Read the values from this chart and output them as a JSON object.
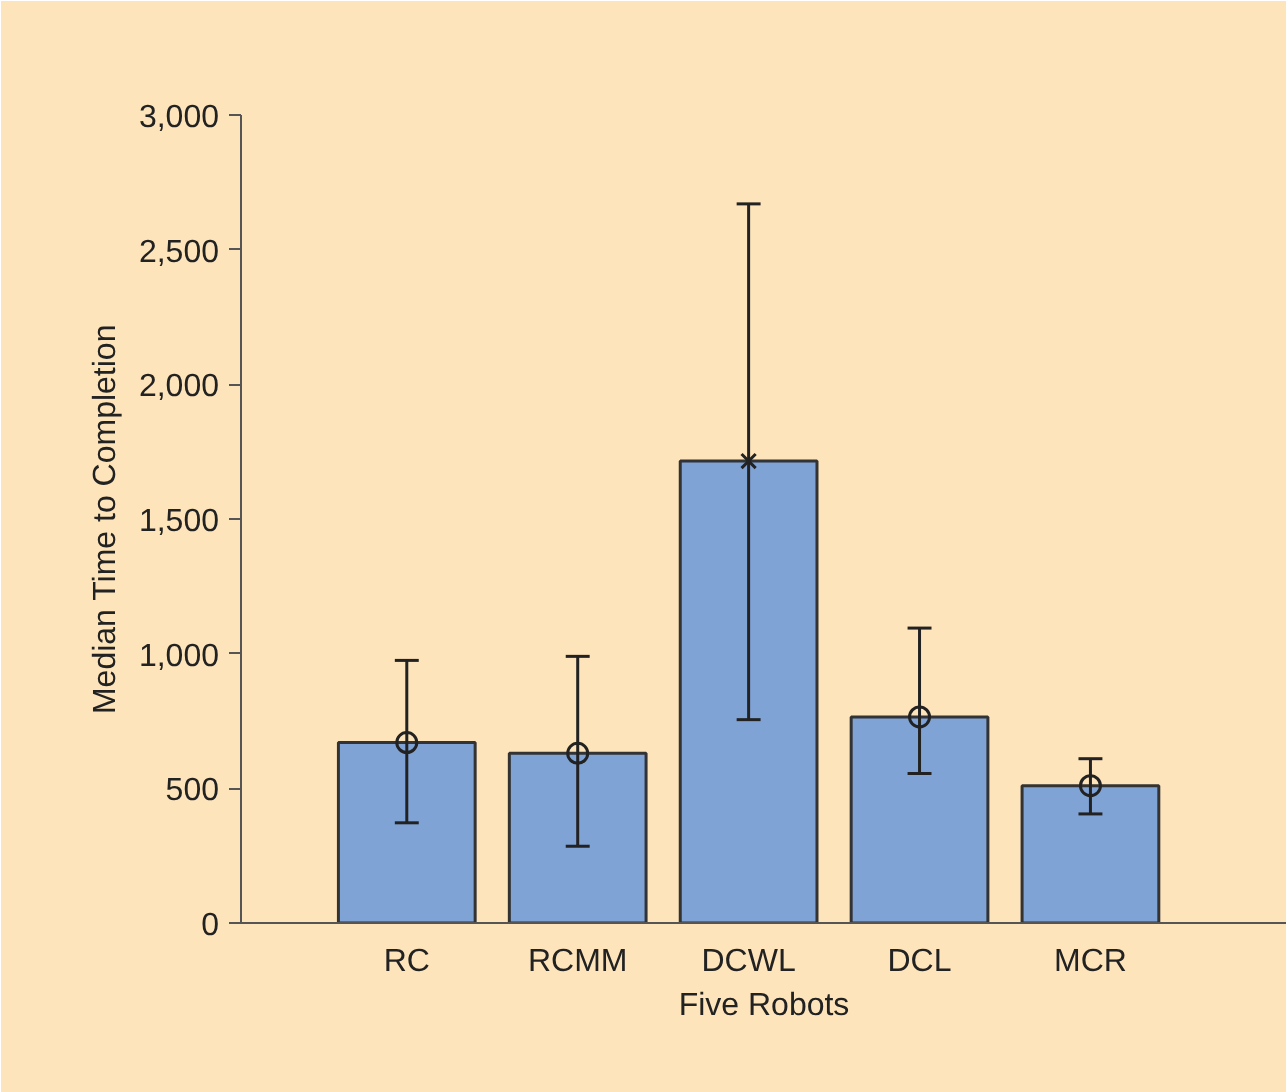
{
  "chart_data": {
    "type": "bar",
    "xlabel": "Five Robots",
    "ylabel": "Median Time to Completion",
    "categories": [
      "RC",
      "RCMM",
      "DCWL",
      "DCL",
      "MCR"
    ],
    "series": [
      {
        "color": "#7fa3d5",
        "values": [
          670,
          630,
          1715,
          765,
          510
        ],
        "errors": [
          [
            372,
            975
          ],
          [
            285,
            990
          ],
          [
            755,
            2670
          ],
          [
            555,
            1095
          ],
          [
            405,
            610
          ]
        ]
      },
      {
        "type": "scatter",
        "marker": "circle",
        "color": "#222222",
        "x": [
          "RC",
          "RCMM",
          "DCL",
          "MCR"
        ],
        "values": [
          670,
          630,
          765,
          510
        ]
      },
      {
        "type": "scatter",
        "marker": "cross",
        "color": "#222222",
        "x": [
          "DCWL"
        ],
        "values": [
          1715
        ]
      }
    ],
    "ylim": [
      0,
      3000
    ],
    "yticks": [
      0,
      {
        "value": 500,
        "label": "500"
      },
      {
        "value": 1000,
        "label": "1,000"
      },
      {
        "value": 1500,
        "label": "1,500"
      },
      {
        "value": 2000,
        "label": "2,000"
      },
      {
        "value": 2500,
        "label": "2,500"
      },
      {
        "value": 3000,
        "label": "3,000"
      }
    ],
    "grid": false
  }
}
